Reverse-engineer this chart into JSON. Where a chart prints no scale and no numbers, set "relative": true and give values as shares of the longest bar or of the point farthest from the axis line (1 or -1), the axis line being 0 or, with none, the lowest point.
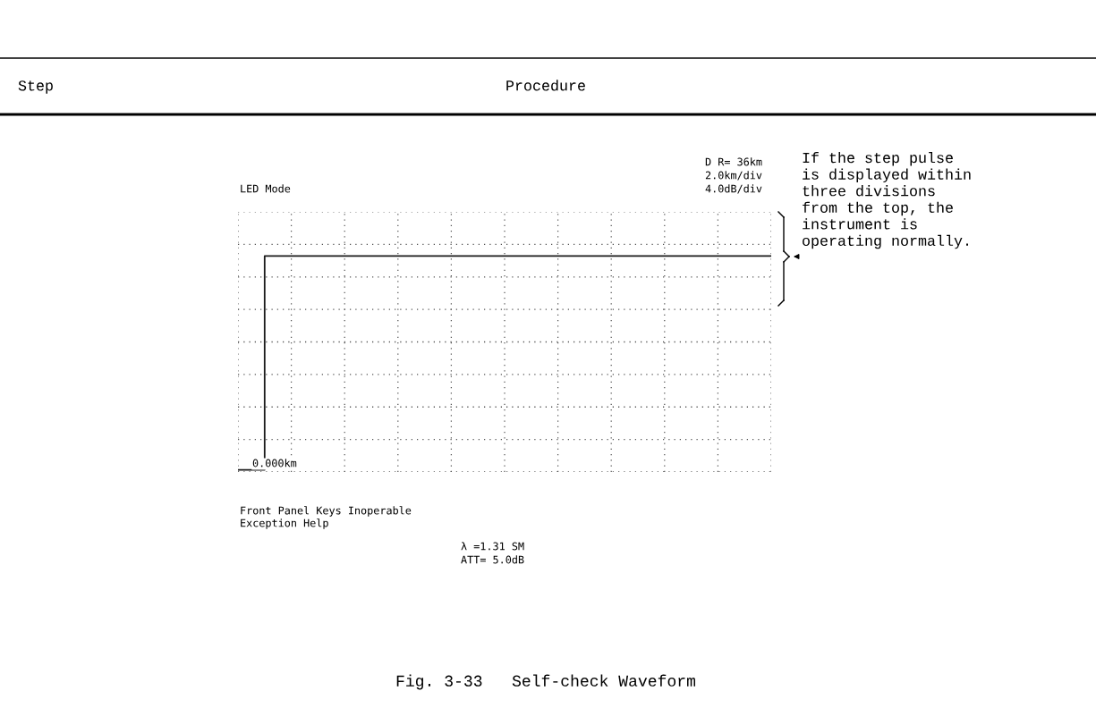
{
  "chart_data": {
    "type": "step",
    "title": "Fig. 3-33   Self-check Waveform",
    "subtitle": "LED Mode",
    "categories": [
      null,
      null,
      null,
      null,
      null,
      null,
      null,
      null,
      null,
      null,
      null,
      null,
      null,
      null,
      null,
      null,
      null,
      null,
      null,
      null,
      null
    ],
    "series": [
      {
        "color": "#1a1a1a",
        "values": [
          0,
          1,
          1,
          1,
          1,
          1,
          1,
          1,
          1,
          1,
          1,
          1,
          1,
          1,
          1,
          1,
          1,
          1,
          1,
          1,
          1
        ]
      }
    ],
    "relative": true,
    "grid": true,
    "annotations": [
      "Step",
      "Procedure",
      "D R= 36km",
      "2.0km/div",
      "4.0dB/div",
      "0.000km",
      "Front Panel Keys Inoperable",
      "Exception Help",
      "λ =1.31 SM",
      "ATT= 5.0dB",
      "If the step pulse\nis displayed within\nthree divisions\nfrom the top, the\ninstrument is\noperating normally."
    ]
  }
}
